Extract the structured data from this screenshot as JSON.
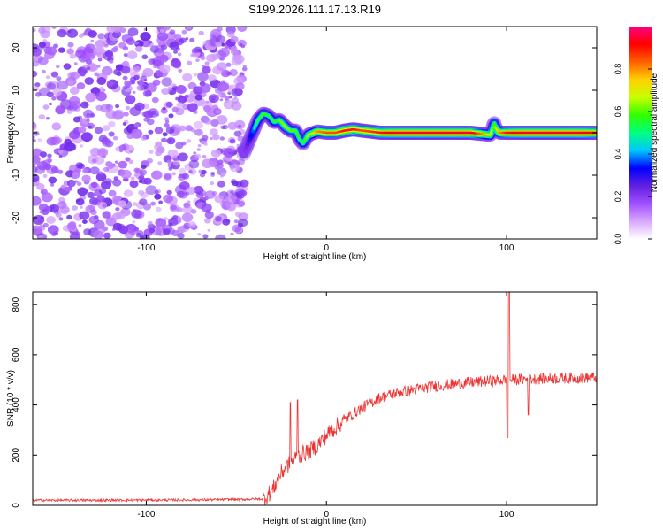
{
  "title": "S199.2026.111.17.13.R19",
  "chart_data": [
    {
      "type": "heatmap",
      "name": "spectrogram",
      "xlabel": "Height of straight line (km)",
      "ylabel": "Frequency (Hz)",
      "xlim": [
        -163,
        150
      ],
      "ylim": [
        -25,
        25
      ],
      "xticks": [
        -100,
        0,
        100
      ],
      "yticks": [
        -20,
        -10,
        0,
        10,
        20
      ],
      "noise_region_x": [
        -163,
        -45
      ],
      "ridge": {
        "x": [
          -46,
          -44,
          -42,
          -40,
          -38,
          -35,
          -32,
          -29,
          -26,
          -23,
          -20,
          -17,
          -15,
          -13,
          -10,
          -5,
          0,
          5,
          10,
          15,
          20,
          30,
          40,
          60,
          80,
          91,
          92,
          93,
          94,
          96,
          100,
          110,
          120,
          130,
          140,
          150
        ],
        "y": [
          -5,
          -3,
          -1,
          1,
          3,
          4.5,
          4,
          2.5,
          3,
          1.5,
          0.5,
          0.5,
          -1.5,
          -2.5,
          -0.5,
          0.3,
          0,
          0,
          0.5,
          0.8,
          0.5,
          0,
          0,
          0,
          0,
          -0.5,
          0.8,
          2.5,
          1,
          0,
          0,
          0,
          0,
          0,
          0,
          0
        ],
        "amp": [
          0.25,
          0.3,
          0.4,
          0.5,
          0.55,
          0.6,
          0.55,
          0.55,
          0.6,
          0.65,
          0.6,
          0.6,
          0.55,
          0.55,
          0.65,
          0.8,
          0.85,
          0.85,
          0.9,
          0.9,
          0.85,
          0.9,
          0.95,
          0.95,
          0.95,
          0.7,
          0.6,
          0.55,
          0.7,
          0.8,
          0.9,
          0.95,
          0.95,
          0.95,
          0.95,
          0.9
        ]
      },
      "colorbar": {
        "label": "Normalized spectral amplitude",
        "range": [
          0,
          1
        ],
        "ticks": [
          "0.0",
          "0.2",
          "0.4",
          "0.6",
          "0.8"
        ],
        "colors": [
          "#ffffff",
          "#d9a7ff",
          "#a050ff",
          "#6020e0",
          "#0000ff",
          "#00c8ff",
          "#00ff80",
          "#30ff00",
          "#c8ff00",
          "#ffd000",
          "#ff6000",
          "#ff0000",
          "#ff0080"
        ]
      }
    },
    {
      "type": "line",
      "name": "snr",
      "xlabel": "Height of straight line (km)",
      "ylabel": "SNR (10 * v/v)",
      "xlim": [
        -163,
        150
      ],
      "ylim": [
        0,
        850
      ],
      "xticks": [
        -100,
        0,
        100
      ],
      "yticks": [
        0,
        200,
        400,
        600,
        800
      ],
      "color": "#ee3333",
      "trend": {
        "x": [
          -163,
          -120,
          -60,
          -35,
          -30,
          -25,
          -20,
          -15,
          -10,
          -5,
          0,
          10,
          20,
          30,
          40,
          60,
          80,
          100,
          120,
          150
        ],
        "y": [
          20,
          20,
          22,
          25,
          60,
          130,
          170,
          200,
          215,
          240,
          280,
          340,
          390,
          430,
          450,
          475,
          490,
          500,
          505,
          510
        ]
      },
      "spikes": [
        {
          "x": -20,
          "y": 410
        },
        {
          "x": -16,
          "y": 420
        },
        {
          "x": 100.5,
          "y": 270
        },
        {
          "x": 101.3,
          "y": 850
        },
        {
          "x": 112,
          "y": 360
        }
      ]
    }
  ]
}
